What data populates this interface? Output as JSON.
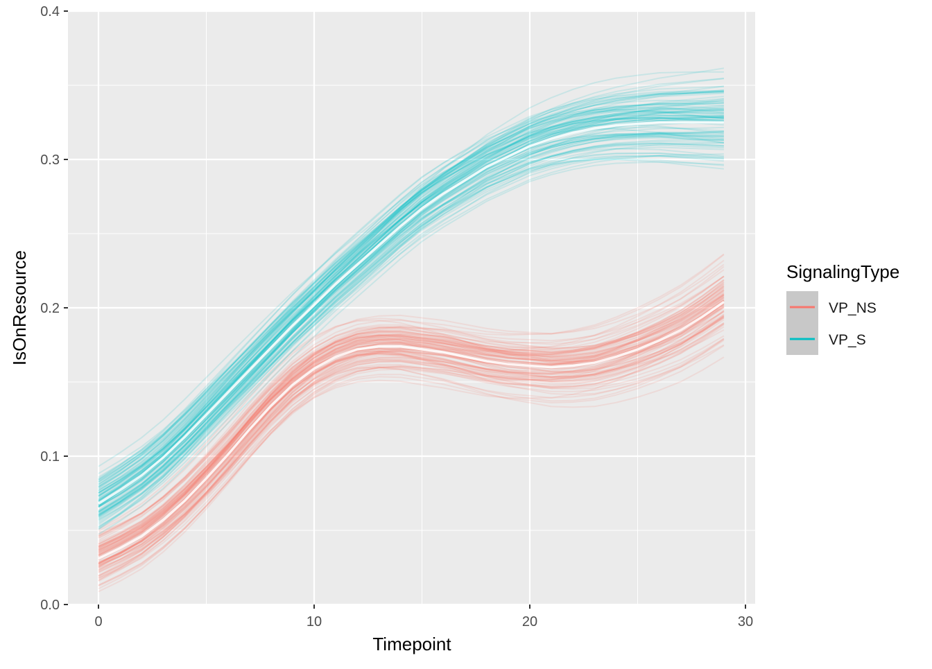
{
  "chart_data": {
    "type": "line",
    "title": "",
    "xlabel": "Timepoint",
    "ylabel": "IsOnResource",
    "xlim": [
      -1.4,
      30.4
    ],
    "ylim": [
      0.0,
      0.4
    ],
    "xticks": [
      0,
      10,
      20,
      30
    ],
    "xtick_labels": [
      "0",
      "10",
      "20",
      "30"
    ],
    "yticks": [
      0.0,
      0.1,
      0.2,
      0.3,
      0.4
    ],
    "ytick_labels": [
      "0.0",
      "0.1",
      "0.2",
      "0.3",
      "0.4"
    ],
    "grid": true,
    "legend": {
      "title": "SignalingType",
      "placement": "right",
      "entries": [
        "VP_NS",
        "VP_S"
      ]
    },
    "x": [
      0,
      1,
      2,
      3,
      4,
      5,
      6,
      7,
      8,
      9,
      10,
      11,
      12,
      13,
      14,
      15,
      16,
      17,
      18,
      19,
      20,
      21,
      22,
      23,
      24,
      25,
      26,
      27,
      28,
      29
    ],
    "series": [
      {
        "name": "VP_NS",
        "color": "#F8766D",
        "ensemble_count": 100,
        "values": [
          0.031,
          0.038,
          0.046,
          0.057,
          0.07,
          0.085,
          0.101,
          0.118,
          0.134,
          0.148,
          0.159,
          0.167,
          0.172,
          0.174,
          0.174,
          0.172,
          0.17,
          0.167,
          0.164,
          0.162,
          0.161,
          0.16,
          0.161,
          0.163,
          0.167,
          0.172,
          0.178,
          0.185,
          0.194,
          0.204
        ]
      },
      {
        "name": "VP_S",
        "color": "#00BFC4",
        "ensemble_count": 100,
        "values": [
          0.068,
          0.077,
          0.087,
          0.099,
          0.113,
          0.128,
          0.143,
          0.158,
          0.173,
          0.188,
          0.202,
          0.216,
          0.229,
          0.242,
          0.255,
          0.267,
          0.277,
          0.286,
          0.295,
          0.302,
          0.309,
          0.314,
          0.318,
          0.321,
          0.323,
          0.324,
          0.325,
          0.325,
          0.325,
          0.325
        ]
      }
    ]
  }
}
